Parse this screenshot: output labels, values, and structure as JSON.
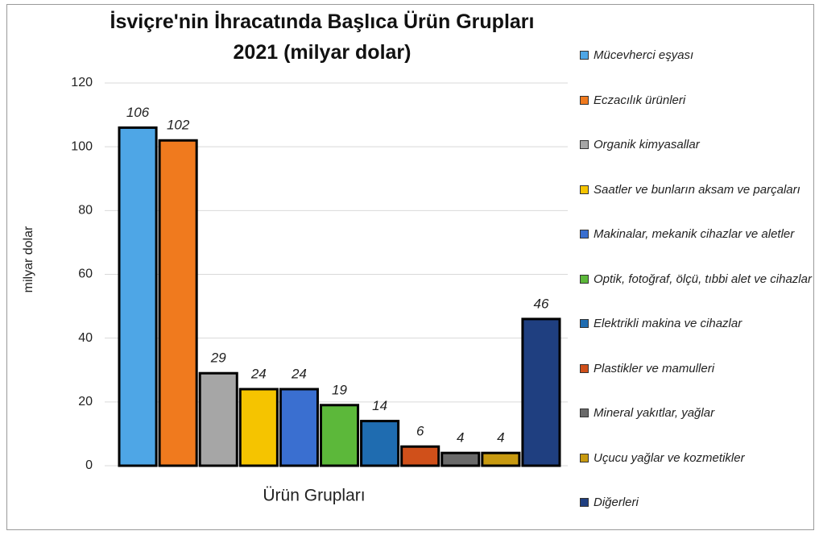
{
  "chart_data": {
    "type": "bar",
    "title": "İsviçre'nin İhracatında Başlıca Ürün Grupları 2021 (milyar dolar)",
    "xlabel": "Ürün Grupları",
    "ylabel": "milyar dolar",
    "categories": [
      "Mücevherci eşyası",
      "Eczacılık ürünleri",
      "Organik kimyasallar",
      "Saatler ve bunların aksam ve parçaları",
      "Makinalar, mekanik cihazlar ve aletler",
      "Optik, fotoğraf, ölçü, tıbbi alet ve cihazlar",
      "Elektrikli makina ve cihazlar",
      "Plastikler ve mamulleri",
      "Mineral yakıtlar, yağlar",
      "Uçucu yağlar ve kozmetikler",
      "Diğerleri"
    ],
    "values": [
      106,
      102,
      29,
      24,
      24,
      19,
      14,
      6,
      4,
      4,
      46
    ],
    "colors": [
      "#4ea6e6",
      "#f07a1e",
      "#a6a6a6",
      "#f5c400",
      "#3a6fd0",
      "#5cb83a",
      "#1f6cb0",
      "#d0501a",
      "#6a6a6a",
      "#c89a10",
      "#1f3f80"
    ],
    "ylim": [
      0,
      120
    ],
    "yticks": [
      0,
      20,
      40,
      60,
      80,
      100,
      120
    ],
    "grid": true
  }
}
